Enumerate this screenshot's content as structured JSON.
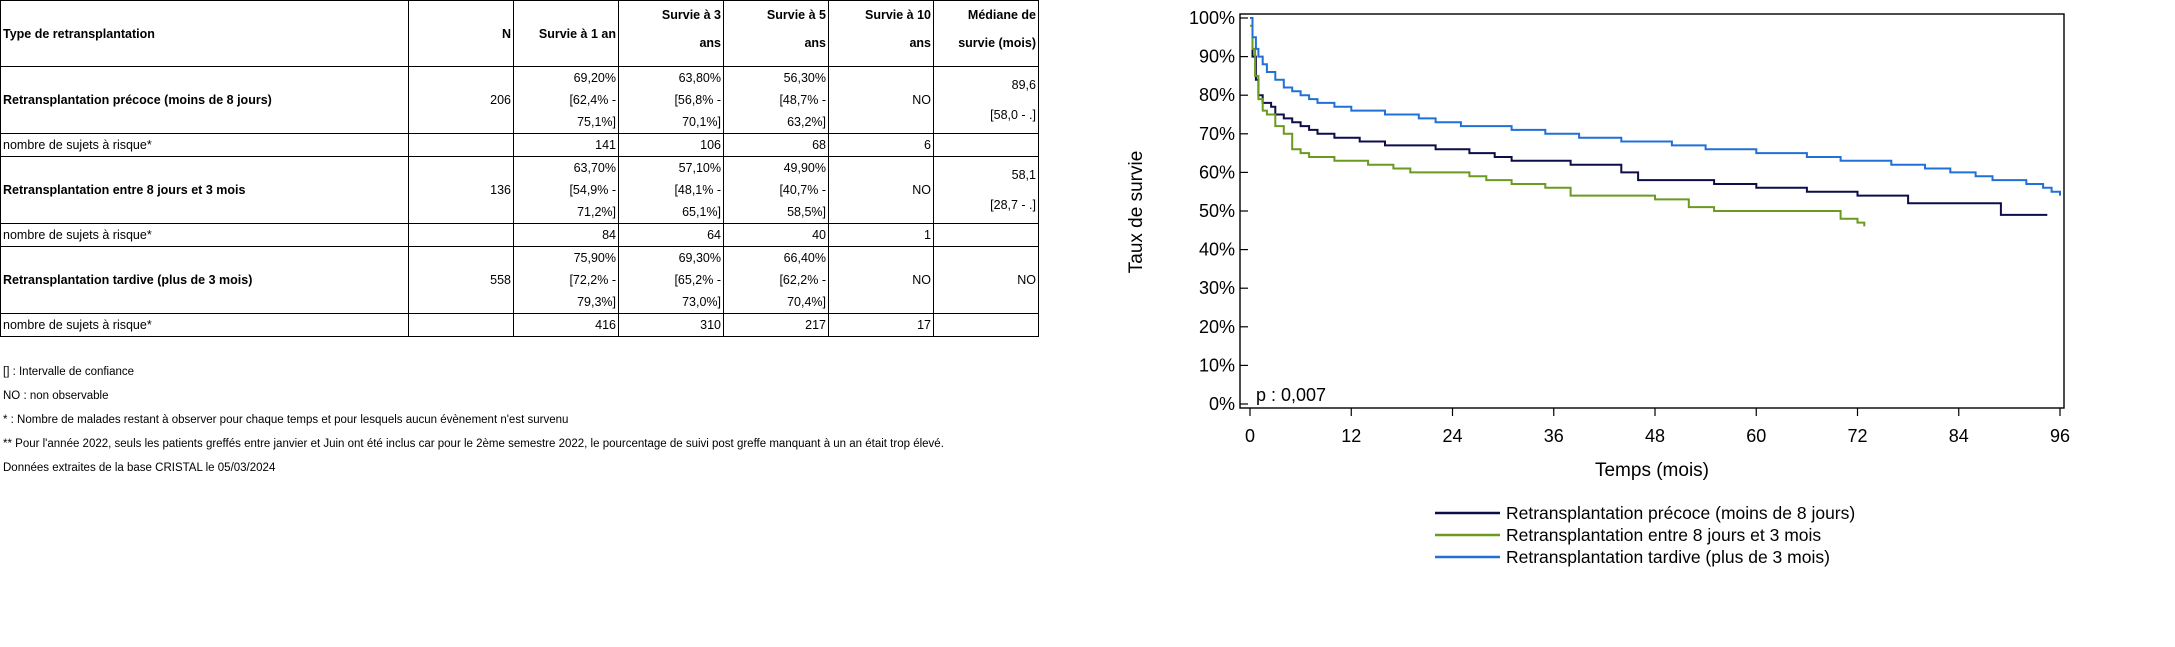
{
  "table": {
    "headers": {
      "type": "Type de retransplantation",
      "n": "N",
      "s1_line1": "Survie à 1 an",
      "s3_line1": "Survie à 3",
      "s3_line2": "ans",
      "s5_line1": "Survie à 5",
      "s5_line2": "ans",
      "s10_line1": "Survie à 10",
      "s10_line2": "ans",
      "median_line1": "Médiane de",
      "median_line2": "survie (mois)"
    },
    "rows": [
      {
        "label": "Retransplantation précoce (moins de 8 jours)",
        "n": "206",
        "s1": [
          "69,20%",
          "[62,4% -",
          "75,1%]"
        ],
        "s3": [
          "63,80%",
          "[56,8% -",
          "70,1%]"
        ],
        "s5": [
          "56,30%",
          "[48,7% -",
          "63,2%]"
        ],
        "s10": "NO",
        "median": [
          "89,6",
          "[58,0 - .]"
        ],
        "risk_label": "nombre de sujets à risque*",
        "risk": [
          "141",
          "106",
          "68",
          "6"
        ]
      },
      {
        "label": "Retransplantation entre 8 jours et 3 mois",
        "n": "136",
        "s1": [
          "63,70%",
          "[54,9% -",
          "71,2%]"
        ],
        "s3": [
          "57,10%",
          "[48,1% -",
          "65,1%]"
        ],
        "s5": [
          "49,90%",
          "[40,7% -",
          "58,5%]"
        ],
        "s10": "NO",
        "median": [
          "58,1",
          "[28,7 - .]"
        ],
        "risk_label": "nombre de sujets à risque*",
        "risk": [
          "84",
          "64",
          "40",
          "1"
        ]
      },
      {
        "label": "Retransplantation tardive (plus de 3 mois)",
        "n": "558",
        "s1": [
          "75,90%",
          "[72,2% -",
          "79,3%]"
        ],
        "s3": [
          "69,30%",
          "[65,2% -",
          "73,0%]"
        ],
        "s5": [
          "66,40%",
          "[62,2% -",
          "70,4%]"
        ],
        "s10": "NO",
        "median": [
          "NO"
        ],
        "risk_label": "nombre de sujets à risque*",
        "risk": [
          "416",
          "310",
          "217",
          "17"
        ]
      }
    ]
  },
  "notes": [
    "[] : Intervalle de confiance",
    "NO : non observable",
    "* : Nombre de malades restant à observer pour chaque temps et pour lesquels aucun évènement n'est survenu",
    "** Pour l'année 2022, seuls les patients greffés entre janvier et Juin ont été inclus car pour le 2ème semestre 2022, le pourcentage de suivi post greffe manquant à un an était trop élevé.",
    "Données extraites de la base CRISTAL le 05/03/2024"
  ],
  "chart_data": {
    "type": "line",
    "step": true,
    "xlabel": "Temps (mois)",
    "ylabel": "Taux de survie",
    "xlim": [
      0,
      96
    ],
    "ylim": [
      0,
      100
    ],
    "xticks": [
      0,
      12,
      24,
      36,
      48,
      60,
      72,
      84,
      96
    ],
    "yticks": [
      0,
      10,
      20,
      30,
      40,
      50,
      60,
      70,
      80,
      90,
      100
    ],
    "ytick_labels": [
      "0%",
      "10%",
      "20%",
      "30%",
      "40%",
      "50%",
      "60%",
      "70%",
      "80%",
      "90%",
      "100%"
    ],
    "grid": false,
    "legend_position": "bottom",
    "annotation": "p : 0,007",
    "series": [
      {
        "name": "Retransplantation précoce (moins de 8 jours)",
        "color": "#0d0d4a",
        "points": [
          [
            0,
            100
          ],
          [
            0.3,
            90
          ],
          [
            0.7,
            84
          ],
          [
            1,
            80
          ],
          [
            1.5,
            78
          ],
          [
            2.5,
            77
          ],
          [
            3,
            75
          ],
          [
            4,
            74
          ],
          [
            5,
            73
          ],
          [
            6,
            72
          ],
          [
            7,
            71
          ],
          [
            8,
            70
          ],
          [
            10,
            69
          ],
          [
            13,
            68
          ],
          [
            16,
            67
          ],
          [
            22,
            66
          ],
          [
            26,
            65
          ],
          [
            29,
            64
          ],
          [
            31,
            63
          ],
          [
            38,
            62
          ],
          [
            44,
            60
          ],
          [
            46,
            58
          ],
          [
            50,
            58
          ],
          [
            55,
            57
          ],
          [
            60,
            56
          ],
          [
            66,
            55
          ],
          [
            72,
            54
          ],
          [
            74,
            54
          ],
          [
            78,
            52
          ],
          [
            88,
            52
          ],
          [
            89,
            49
          ],
          [
            94.5,
            49
          ]
        ]
      },
      {
        "name": "Retransplantation entre 8 jours et 3 mois",
        "color": "#6a9a1f",
        "points": [
          [
            0,
            98
          ],
          [
            0.3,
            92
          ],
          [
            0.6,
            85
          ],
          [
            1,
            79
          ],
          [
            1.5,
            76
          ],
          [
            2,
            75
          ],
          [
            3,
            72
          ],
          [
            4,
            70
          ],
          [
            5,
            66
          ],
          [
            6,
            65
          ],
          [
            7,
            64
          ],
          [
            10,
            63
          ],
          [
            14,
            62
          ],
          [
            17,
            61
          ],
          [
            19,
            60
          ],
          [
            26,
            59
          ],
          [
            28,
            58
          ],
          [
            31,
            57
          ],
          [
            35,
            56
          ],
          [
            38,
            54
          ],
          [
            48,
            53
          ],
          [
            52,
            51
          ],
          [
            55,
            50
          ],
          [
            68,
            50
          ],
          [
            70,
            48
          ],
          [
            72,
            47
          ],
          [
            72.8,
            46
          ]
        ]
      },
      {
        "name": "Retransplantation tardive (plus de 3 mois)",
        "color": "#2070d8",
        "points": [
          [
            0,
            100
          ],
          [
            0.3,
            95
          ],
          [
            0.7,
            92
          ],
          [
            1,
            90
          ],
          [
            1.5,
            88
          ],
          [
            2,
            86
          ],
          [
            3,
            84
          ],
          [
            4,
            82
          ],
          [
            5,
            81
          ],
          [
            6,
            80
          ],
          [
            7,
            79
          ],
          [
            8,
            78
          ],
          [
            10,
            77
          ],
          [
            12,
            76
          ],
          [
            16,
            75
          ],
          [
            20,
            74
          ],
          [
            22,
            73
          ],
          [
            25,
            72
          ],
          [
            31,
            71
          ],
          [
            35,
            70
          ],
          [
            39,
            69
          ],
          [
            44,
            68
          ],
          [
            50,
            67
          ],
          [
            54,
            66
          ],
          [
            60,
            65
          ],
          [
            66,
            64
          ],
          [
            70,
            63
          ],
          [
            76,
            62
          ],
          [
            80,
            61
          ],
          [
            83,
            60
          ],
          [
            86,
            59
          ],
          [
            88,
            58
          ],
          [
            92,
            57
          ],
          [
            94,
            56
          ],
          [
            95,
            55
          ],
          [
            96,
            54
          ]
        ]
      }
    ]
  }
}
